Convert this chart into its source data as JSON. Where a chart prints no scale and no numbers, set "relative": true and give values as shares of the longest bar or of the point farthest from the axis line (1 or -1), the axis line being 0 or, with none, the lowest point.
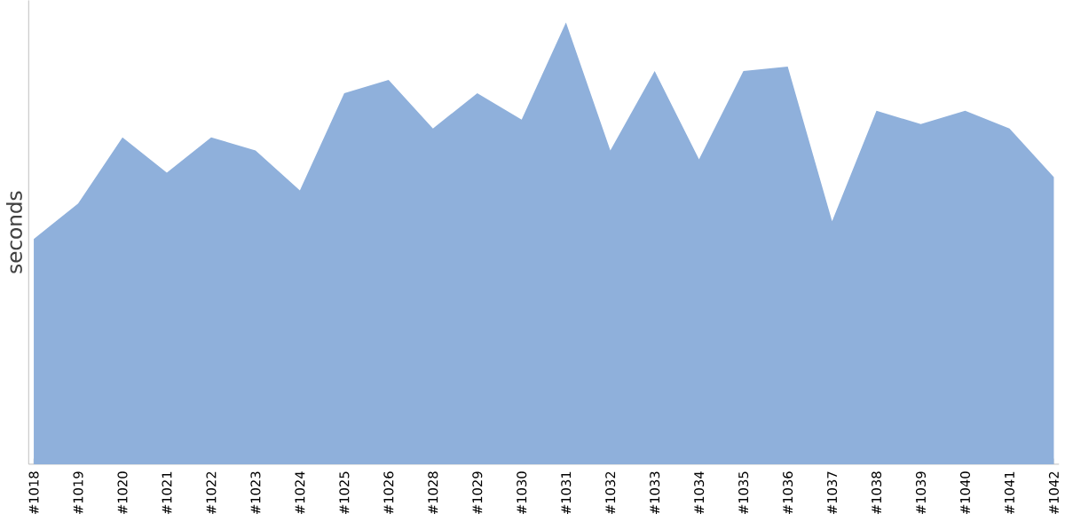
{
  "chart_data": {
    "type": "area",
    "ylabel": "seconds",
    "relative": true,
    "categories": [
      "#1018",
      "#1019",
      "#1020",
      "#1021",
      "#1022",
      "#1023",
      "#1024",
      "#1025",
      "#1026",
      "#1028",
      "#1029",
      "#1030",
      "#1031",
      "#1032",
      "#1033",
      "#1034",
      "#1035",
      "#1036",
      "#1037",
      "#1038",
      "#1039",
      "#1040",
      "#1041",
      "#1042"
    ],
    "series": [
      {
        "color": "#8fb0db",
        "values": [
          0.51,
          0.59,
          0.74,
          0.66,
          0.74,
          0.71,
          0.62,
          0.84,
          0.87,
          0.76,
          0.84,
          0.78,
          1.0,
          0.71,
          0.89,
          0.69,
          0.89,
          0.9,
          0.55,
          0.8,
          0.77,
          0.8,
          0.76,
          0.65
        ]
      }
    ]
  }
}
